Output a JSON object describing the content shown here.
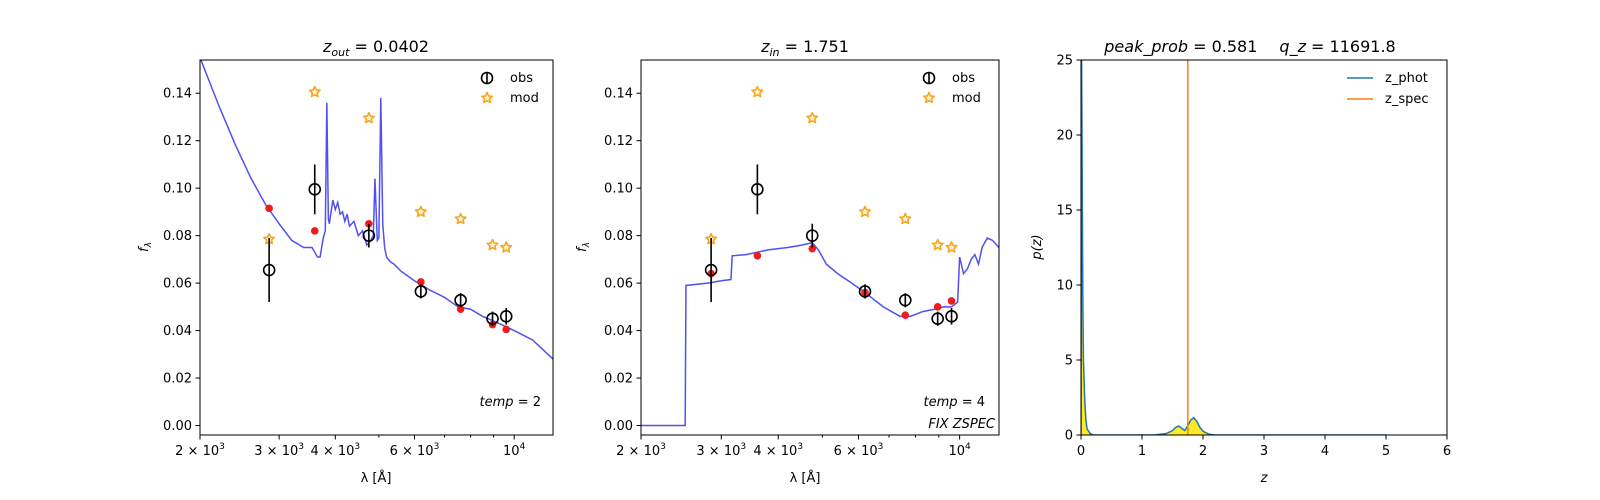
{
  "chart_data": [
    {
      "type": "line",
      "title": "z_out = 0.0402",
      "title_main": "z",
      "title_sub": "out",
      "title_rest": " = 0.0402",
      "xlabel": "λ [Å]",
      "ylabel": "fλ",
      "ylabel_main": "f",
      "ylabel_sub": "λ",
      "xscale": "log",
      "xlim": [
        2000,
        12200
      ],
      "ylim": [
        -0.004,
        0.154
      ],
      "x_ticks": [
        {
          "value": 2000,
          "label": "2 × 10",
          "exp": "3"
        },
        {
          "value": 3000,
          "label": "3 × 10",
          "exp": "3"
        },
        {
          "value": 4000,
          "label": "4 × 10",
          "exp": "3"
        },
        {
          "value": 6000,
          "label": "6 × 10",
          "exp": "3"
        },
        {
          "value": 10000,
          "label": "10",
          "exp": "4"
        }
      ],
      "y_ticks": [
        {
          "value": 0.0,
          "label": "0.00"
        },
        {
          "value": 0.02,
          "label": "0.02"
        },
        {
          "value": 0.04,
          "label": "0.04"
        },
        {
          "value": 0.06,
          "label": "0.06"
        },
        {
          "value": 0.08,
          "label": "0.08"
        },
        {
          "value": 0.1,
          "label": "0.10"
        },
        {
          "value": 0.12,
          "label": "0.12"
        },
        {
          "value": 0.14,
          "label": "0.14"
        }
      ],
      "legend": {
        "placement": "top-right",
        "entries": [
          "obs",
          "mod"
        ]
      },
      "annotation": "temp = 2",
      "annotation_main": "temp",
      "annotation_rest": " = 2",
      "annotation2": "",
      "series": [
        {
          "name": "obs",
          "kind": "errorbar",
          "color": "#000000",
          "x": [
            2850,
            3600,
            4750,
            6200,
            7600,
            8950,
            9600
          ],
          "y": [
            0.0655,
            0.0995,
            0.08,
            0.0565,
            0.0528,
            0.045,
            0.046
          ],
          "yerr": [
            0.0135,
            0.0105,
            0.005,
            0.003,
            0.003,
            0.003,
            0.0035
          ]
        },
        {
          "name": "mod",
          "kind": "marker",
          "color": "#f5a623",
          "x": [
            2850,
            3600,
            4750,
            6200,
            7600,
            8950,
            9600
          ],
          "y": [
            0.0785,
            0.1405,
            0.1295,
            0.09,
            0.087,
            0.076,
            0.075
          ]
        },
        {
          "name": "",
          "kind": "dots",
          "color": "#ee1c1c",
          "x": [
            2850,
            3600,
            4750,
            6200,
            7600,
            8950,
            9600
          ],
          "y": [
            0.0915,
            0.082,
            0.085,
            0.0605,
            0.049,
            0.0425,
            0.0405
          ]
        },
        {
          "name": "",
          "kind": "line",
          "color": "#3333ee",
          "x": [
            2000,
            2200,
            2400,
            2600,
            2800,
            3000,
            3200,
            3400,
            3550,
            3650,
            3700,
            3760,
            3800,
            3830,
            3860,
            3880,
            3900,
            3950,
            4000,
            4050,
            4100,
            4150,
            4200,
            4250,
            4300,
            4400,
            4500,
            4600,
            4700,
            4800,
            4860,
            4900,
            4960,
            5000,
            5050,
            5100,
            5150,
            5200,
            5300,
            5400,
            5600,
            6000,
            6500,
            7000,
            7500,
            8000,
            8500,
            9000,
            9500,
            10000,
            11000,
            12200
          ],
          "y": [
            0.155,
            0.135,
            0.118,
            0.104,
            0.093,
            0.085,
            0.078,
            0.075,
            0.075,
            0.071,
            0.071,
            0.079,
            0.082,
            0.136,
            0.087,
            0.085,
            0.088,
            0.095,
            0.091,
            0.094,
            0.089,
            0.09,
            0.086,
            0.089,
            0.084,
            0.086,
            0.08,
            0.082,
            0.076,
            0.078,
            0.08,
            0.104,
            0.078,
            0.079,
            0.138,
            0.085,
            0.075,
            0.071,
            0.069,
            0.068,
            0.065,
            0.061,
            0.057,
            0.054,
            0.05,
            0.049,
            0.046,
            0.044,
            0.042,
            0.04,
            0.036,
            0.028
          ]
        }
      ]
    },
    {
      "type": "line",
      "title": "z_in = 1.751",
      "title_main": "z",
      "title_sub": "in",
      "title_rest": " = 1.751",
      "xlabel": "λ [Å]",
      "ylabel": "fλ",
      "ylabel_main": "f",
      "ylabel_sub": "λ",
      "xscale": "log",
      "xlim": [
        2000,
        12200
      ],
      "ylim": [
        -0.004,
        0.154
      ],
      "x_ticks": [
        {
          "value": 2000,
          "label": "2 × 10",
          "exp": "3"
        },
        {
          "value": 3000,
          "label": "3 × 10",
          "exp": "3"
        },
        {
          "value": 4000,
          "label": "4 × 10",
          "exp": "3"
        },
        {
          "value": 6000,
          "label": "6 × 10",
          "exp": "3"
        },
        {
          "value": 10000,
          "label": "10",
          "exp": "4"
        }
      ],
      "y_ticks": [
        {
          "value": 0.0,
          "label": "0.00"
        },
        {
          "value": 0.02,
          "label": "0.02"
        },
        {
          "value": 0.04,
          "label": "0.04"
        },
        {
          "value": 0.06,
          "label": "0.06"
        },
        {
          "value": 0.08,
          "label": "0.08"
        },
        {
          "value": 0.1,
          "label": "0.10"
        },
        {
          "value": 0.12,
          "label": "0.12"
        },
        {
          "value": 0.14,
          "label": "0.14"
        }
      ],
      "legend": {
        "placement": "top-right",
        "entries": [
          "obs",
          "mod"
        ]
      },
      "annotation": "temp = 4",
      "annotation_main": "temp",
      "annotation_rest": " = 4",
      "annotation2": "FIX ZSPEC",
      "series": [
        {
          "name": "obs",
          "kind": "errorbar",
          "color": "#000000",
          "x": [
            2850,
            3600,
            4750,
            6200,
            7600,
            8950,
            9600
          ],
          "y": [
            0.0655,
            0.0995,
            0.08,
            0.0565,
            0.0528,
            0.045,
            0.046
          ],
          "yerr": [
            0.0135,
            0.0105,
            0.005,
            0.003,
            0.003,
            0.003,
            0.0035
          ]
        },
        {
          "name": "mod",
          "kind": "marker",
          "color": "#f5a623",
          "x": [
            2850,
            3600,
            4750,
            6200,
            7600,
            8950,
            9600
          ],
          "y": [
            0.0785,
            0.1405,
            0.1295,
            0.09,
            0.087,
            0.076,
            0.075
          ]
        },
        {
          "name": "",
          "kind": "dots",
          "color": "#ee1c1c",
          "x": [
            2850,
            3600,
            4750,
            6200,
            7600,
            8950,
            9600
          ],
          "y": [
            0.064,
            0.0715,
            0.0745,
            0.056,
            0.0465,
            0.05,
            0.0525
          ]
        },
        {
          "name": "",
          "kind": "line",
          "color": "#3333ee",
          "x": [
            2000,
            2500,
            2510,
            2800,
            3000,
            3150,
            3170,
            3400,
            3800,
            4200,
            4500,
            4750,
            4900,
            5100,
            5400,
            5800,
            6200,
            6800,
            7400,
            7800,
            8300,
            8800,
            9200,
            9600,
            9900,
            10000,
            10200,
            10400,
            10600,
            10800,
            11000,
            11200,
            11500,
            11800,
            12200
          ],
          "y": [
            0.0,
            0.0,
            0.059,
            0.06,
            0.061,
            0.0615,
            0.0715,
            0.072,
            0.074,
            0.075,
            0.076,
            0.077,
            0.074,
            0.068,
            0.064,
            0.06,
            0.056,
            0.05,
            0.046,
            0.046,
            0.048,
            0.049,
            0.05,
            0.05,
            0.052,
            0.071,
            0.064,
            0.066,
            0.07,
            0.072,
            0.068,
            0.075,
            0.079,
            0.078,
            0.075
          ]
        }
      ]
    },
    {
      "type": "area",
      "title": "peak_prob = 0.581     q_z = 11691.8",
      "title_a": "peak_prob",
      "title_a_rest": " = 0.581",
      "title_b": "q_z",
      "title_b_rest": " = 11691.8",
      "xlabel": "z",
      "ylabel": "p(z)",
      "xscale": "linear",
      "xlim": [
        0,
        6
      ],
      "ylim": [
        0,
        25
      ],
      "x_ticks": [
        {
          "value": 0,
          "label": "0"
        },
        {
          "value": 1,
          "label": "1"
        },
        {
          "value": 2,
          "label": "2"
        },
        {
          "value": 3,
          "label": "3"
        },
        {
          "value": 4,
          "label": "4"
        },
        {
          "value": 5,
          "label": "5"
        },
        {
          "value": 6,
          "label": "6"
        }
      ],
      "y_ticks": [
        {
          "value": 0,
          "label": "0"
        },
        {
          "value": 5,
          "label": "5"
        },
        {
          "value": 10,
          "label": "10"
        },
        {
          "value": 15,
          "label": "15"
        },
        {
          "value": 20,
          "label": "20"
        },
        {
          "value": 25,
          "label": "25"
        }
      ],
      "legend": {
        "placement": "top-right",
        "entries": [
          "z_phot",
          "z_spec"
        ]
      },
      "series": [
        {
          "name": "",
          "kind": "fill",
          "color": "#ffe600",
          "x": [
            0,
            0.01,
            0.02,
            0.03,
            0.04,
            0.06,
            0.08,
            0.1,
            0.15,
            0.2,
            1.2,
            1.4,
            1.5,
            1.55,
            1.6,
            1.65,
            1.7,
            1.75,
            1.8,
            1.85,
            1.9,
            1.95,
            2.0,
            2.1,
            2.2,
            5
          ],
          "y": [
            0,
            25,
            17,
            9,
            5,
            2.5,
            1,
            0.4,
            0.1,
            0,
            0,
            0.1,
            0.3,
            0.5,
            0.6,
            0.45,
            0.3,
            0.6,
            1.0,
            1.15,
            0.9,
            0.5,
            0.25,
            0.05,
            0,
            0
          ]
        },
        {
          "name": "z_phot",
          "kind": "line",
          "color": "#1f77b4",
          "x": [
            0,
            0.01,
            0.02,
            0.03,
            0.04,
            0.06,
            0.08,
            0.1,
            0.15,
            0.2,
            1.2,
            1.4,
            1.5,
            1.55,
            1.6,
            1.65,
            1.7,
            1.75,
            1.8,
            1.85,
            1.9,
            1.95,
            2.0,
            2.1,
            2.2,
            5
          ],
          "y": [
            0,
            25,
            17,
            9,
            5,
            2.5,
            1,
            0.4,
            0.1,
            0,
            0,
            0.1,
            0.3,
            0.5,
            0.6,
            0.45,
            0.3,
            0.6,
            1.0,
            1.15,
            0.9,
            0.5,
            0.25,
            0.05,
            0,
            0
          ]
        },
        {
          "name": "z_spec",
          "kind": "vline",
          "color": "#ff7f0e",
          "x": [
            1.751
          ]
        }
      ]
    }
  ]
}
